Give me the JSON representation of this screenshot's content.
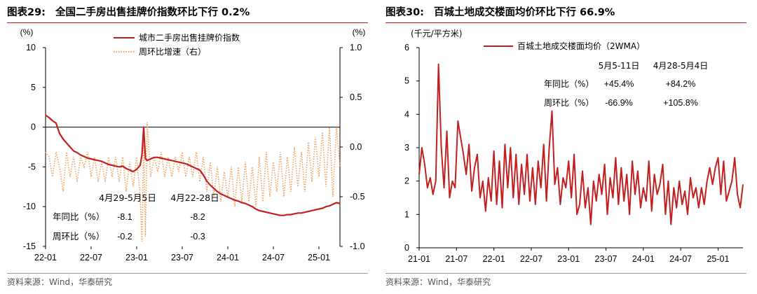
{
  "colors": {
    "line": "#c0201f",
    "dotted": "#f0a060",
    "rule": "#b71c1c"
  },
  "left": {
    "title_num": "图表29:",
    "title_text": "全国二手房出售挂牌价指数环比下行 0.2%",
    "source": "资料来源：Wind，华泰研究",
    "y_left_unit": "(%)",
    "y_right_unit": "(%)",
    "legend": [
      "城市二手房出售挂牌价指数",
      "周环比增速（右）"
    ],
    "x_ticks": [
      "22-01",
      "22-07",
      "23-01",
      "23-07",
      "24-01",
      "24-07",
      "25-01"
    ],
    "y_left_ticks": [
      "10",
      "5",
      "0",
      "-5",
      "-10",
      "-15"
    ],
    "y_right_ticks": [
      "1.0",
      "0.5",
      "0.0",
      "-0.5",
      "-1.0"
    ],
    "table": {
      "col1": "4月29-5月5日",
      "col2": "4月22-28日",
      "row1_label": "年同比（%）",
      "row1_v1": "-8.1",
      "row1_v2": "-8.2",
      "row2_label": "周环比（%）",
      "row2_v1": "-0.2",
      "row2_v2": "-0.3"
    }
  },
  "right": {
    "title_num": "图表30:",
    "title_text": "百城土地成交楼面均价环比下行 66.9%",
    "source": "资料来源：Wind，华泰研究",
    "y_unit": "(千元/平方米)",
    "legend": [
      "百城土地成交楼面均价（2WMA）"
    ],
    "x_ticks": [
      "21-01",
      "21-07",
      "22-01",
      "22-07",
      "23-01",
      "23-07",
      "24-01",
      "24-07",
      "25-01"
    ],
    "y_ticks": [
      "6",
      "5",
      "4",
      "3",
      "2",
      "1",
      "0"
    ],
    "table": {
      "col1": "5月5-11日",
      "col2": "4月28-5月4日",
      "row1_label": "年同比（%）",
      "row1_v1": "+45.4%",
      "row1_v2": "+84.2%",
      "row2_label": "周环比（%）",
      "row2_v1": "-66.9%",
      "row2_v2": "+105.8%"
    }
  },
  "chart_data": [
    {
      "type": "line",
      "title": "全国二手房出售挂牌价指数环比下行 0.2%",
      "x_unit": "week index from 22-01",
      "ylim": [
        -15,
        10
      ],
      "y2lim": [
        -1.0,
        1.0
      ],
      "series": [
        {
          "name": "城市二手房出售挂牌价指数",
          "axis": "left",
          "x": [
            0,
            2,
            4,
            6,
            8,
            10,
            12,
            14,
            16,
            18,
            20,
            22,
            24,
            26,
            28,
            30,
            32,
            34,
            36,
            38,
            40,
            42,
            44,
            46,
            48,
            50,
            52,
            54,
            55,
            56,
            57,
            58,
            60,
            62,
            64,
            66,
            68,
            70,
            72,
            74,
            76,
            78,
            80,
            82,
            84,
            86,
            88,
            90,
            92,
            94,
            96,
            98,
            100,
            102,
            104,
            106,
            108,
            110,
            112,
            114,
            116,
            118,
            120,
            122,
            124,
            126,
            128,
            130,
            132,
            134,
            136,
            138,
            140,
            142,
            144,
            146,
            148,
            150,
            152,
            154,
            156,
            158,
            160,
            162,
            164,
            166,
            168
          ],
          "y": [
            1.5,
            1.2,
            0.8,
            0.5,
            -0.8,
            -1.5,
            -2.0,
            -2.5,
            -3.0,
            -3.2,
            -3.5,
            -3.7,
            -3.9,
            -4.0,
            -4.1,
            -4.2,
            -4.3,
            -4.5,
            -4.7,
            -4.8,
            -4.9,
            -5.0,
            -4.9,
            -5.2,
            -5.4,
            -5.6,
            -5.3,
            -4.8,
            -3.5,
            0.0,
            -4.0,
            -4.2,
            -4.0,
            -3.8,
            -3.8,
            -3.9,
            -4.0,
            -4.1,
            -4.2,
            -4.3,
            -4.4,
            -4.5,
            -4.6,
            -4.8,
            -5.0,
            -5.2,
            -5.4,
            -6.0,
            -6.8,
            -7.3,
            -7.7,
            -8.1,
            -8.4,
            -8.6,
            -8.8,
            -9.0,
            -9.2,
            -9.3,
            -9.5,
            -9.6,
            -9.8,
            -10.0,
            -10.3,
            -10.5,
            -10.6,
            -10.7,
            -10.8,
            -10.9,
            -11.0,
            -11.1,
            -11.1,
            -11.0,
            -11.0,
            -10.9,
            -10.8,
            -10.8,
            -10.7,
            -10.6,
            -10.5,
            -10.4,
            -10.3,
            -10.2,
            -10.0,
            -9.9,
            -9.7,
            -9.5,
            -9.6
          ]
        },
        {
          "name": "周环比增速（右）",
          "axis": "right",
          "x": [
            0,
            2,
            4,
            6,
            8,
            10,
            12,
            14,
            16,
            18,
            20,
            22,
            24,
            26,
            28,
            30,
            32,
            34,
            36,
            38,
            40,
            42,
            44,
            46,
            48,
            50,
            52,
            54,
            55,
            56,
            57,
            58,
            60,
            62,
            64,
            66,
            68,
            70,
            72,
            74,
            76,
            78,
            80,
            82,
            84,
            86,
            88,
            90,
            92,
            94,
            96,
            98,
            100,
            102,
            104,
            106,
            108,
            110,
            112,
            114,
            116,
            118,
            120,
            122,
            124,
            126,
            128,
            130,
            132,
            134,
            136,
            138,
            140,
            142,
            144,
            146,
            148,
            150,
            152,
            154,
            156,
            158,
            160,
            162,
            164,
            166,
            168
          ],
          "y": [
            -0.05,
            -0.1,
            -0.3,
            -0.05,
            -0.2,
            -0.45,
            -0.05,
            -0.3,
            -0.1,
            -0.35,
            -0.1,
            -0.2,
            -0.05,
            -0.3,
            -0.1,
            -0.35,
            -0.15,
            -0.35,
            -0.1,
            -0.3,
            -0.1,
            -0.35,
            -0.1,
            -0.45,
            -0.15,
            -0.4,
            -0.1,
            -0.5,
            -0.95,
            0.05,
            -0.9,
            0.25,
            -0.3,
            -0.1,
            -0.25,
            -0.05,
            -0.3,
            -0.1,
            -0.3,
            -0.1,
            -0.25,
            -0.05,
            -0.3,
            -0.1,
            -0.3,
            -0.05,
            -0.35,
            -0.1,
            -0.45,
            -0.15,
            -0.5,
            -0.2,
            -0.55,
            -0.25,
            -0.5,
            -0.2,
            -0.6,
            -0.2,
            -0.55,
            -0.15,
            -0.55,
            -0.2,
            -0.6,
            -0.1,
            -0.55,
            -0.05,
            -0.5,
            -0.15,
            -0.45,
            -0.05,
            -0.5,
            -0.1,
            -0.45,
            0.0,
            -0.4,
            -0.05,
            -0.45,
            0.05,
            -0.35,
            0.1,
            -0.3,
            0.15,
            -0.4,
            0.2,
            -0.5,
            0.2,
            -0.2
          ]
        }
      ]
    },
    {
      "type": "line",
      "title": "百城土地成交楼面均价环比下行 66.9%",
      "x_unit": "week index from 21-01",
      "ylabel": "(千元/平方米)",
      "ylim": [
        0,
        6
      ],
      "series": [
        {
          "name": "百城土地成交楼面均价（2WMA）",
          "x": [
            0,
            2,
            4,
            6,
            8,
            10,
            12,
            14,
            16,
            18,
            20,
            22,
            24,
            26,
            28,
            30,
            32,
            34,
            36,
            38,
            40,
            42,
            44,
            46,
            48,
            50,
            52,
            54,
            56,
            58,
            60,
            62,
            64,
            66,
            68,
            70,
            72,
            74,
            76,
            78,
            80,
            82,
            84,
            86,
            88,
            90,
            92,
            94,
            96,
            98,
            100,
            102,
            104,
            106,
            108,
            110,
            112,
            114,
            116,
            118,
            120,
            122,
            124,
            126,
            128,
            130,
            132,
            134,
            136,
            138,
            140,
            142,
            144,
            146,
            148,
            150,
            152,
            154,
            156,
            158,
            160,
            162,
            164,
            166,
            168,
            170,
            172,
            174,
            176,
            178,
            180,
            182,
            184,
            186,
            188,
            190,
            192,
            194,
            196,
            198,
            200,
            202,
            204,
            206,
            208,
            210,
            212,
            214,
            216,
            218,
            220,
            222,
            224,
            226,
            228,
            230,
            232,
            234
          ],
          "y": [
            2.2,
            3.0,
            2.5,
            1.8,
            2.1,
            1.6,
            2.0,
            5.5,
            3.0,
            1.8,
            3.5,
            1.5,
            2.0,
            1.8,
            3.8,
            3.3,
            2.8,
            2.2,
            3.1,
            1.7,
            2.4,
            2.8,
            1.5,
            2.0,
            1.1,
            2.1,
            1.4,
            2.9,
            1.3,
            2.6,
            1.2,
            3.1,
            1.8,
            3.0,
            1.5,
            2.8,
            1.3,
            2.5,
            1.6,
            2.8,
            1.4,
            2.4,
            1.3,
            2.6,
            1.8,
            3.1,
            1.4,
            3.0,
            4.1,
            1.9,
            2.4,
            1.3,
            2.1,
            1.8,
            2.6,
            1.5,
            2.8,
            1.0,
            1.3,
            2.3,
            1.2,
            1.8,
            0.7,
            2.0,
            1.4,
            2.2,
            1.6,
            2.5,
            1.0,
            2.1,
            1.5,
            2.7,
            1.3,
            2.4,
            1.4,
            2.2,
            1.0,
            2.6,
            1.6,
            2.3,
            1.2,
            1.8,
            1.4,
            2.6,
            1.1,
            2.2,
            1.6,
            1.9,
            2.5,
            1.0,
            2.0,
            0.7,
            1.8,
            1.2,
            2.0,
            1.3,
            1.7,
            1.0,
            2.1,
            1.5,
            1.8,
            1.2,
            1.8,
            1.3,
            2.0,
            2.4,
            1.9,
            2.4,
            2.7,
            1.6,
            2.6,
            1.4,
            1.7,
            2.0,
            2.7,
            1.6,
            1.2,
            1.9
          ]
        }
      ]
    }
  ]
}
